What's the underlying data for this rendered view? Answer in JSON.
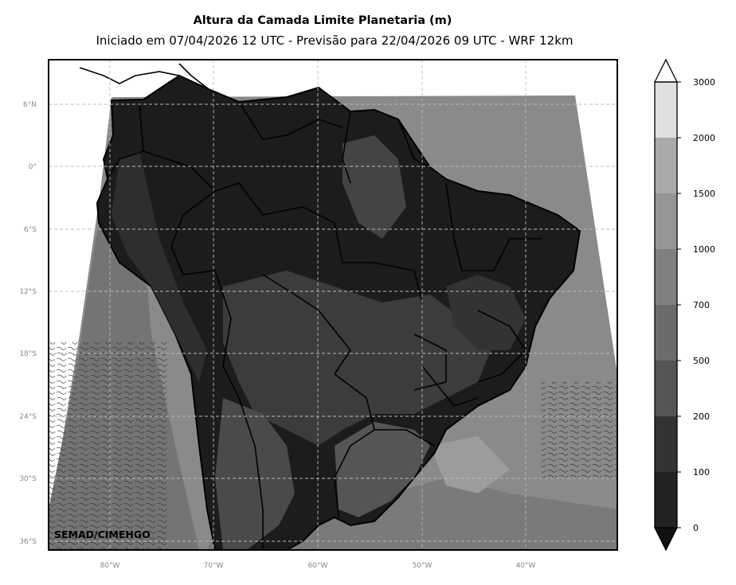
{
  "title": "Altura da Camada Limite Planetaria (m)",
  "subtitle": "Iniciado em 07/04/2026 12 UTC - Previsão para 22/04/2026 09 UTC - WRF 12km",
  "credit": "SEMAD/CIMEHGO",
  "lat_ticks": [
    "6°N",
    "0°",
    "6°S",
    "12°S",
    "18°S",
    "24°S",
    "30°S",
    "36°S"
  ],
  "lon_ticks": [
    "80°W",
    "70°W",
    "60°W",
    "50°W",
    "40°W"
  ],
  "colorbar": {
    "levels": [
      "0",
      "100",
      "200",
      "500",
      "700",
      "1000",
      "1500",
      "2000",
      "3000"
    ],
    "colors": [
      "#111111",
      "#222222",
      "#333333",
      "#555555",
      "#6b6b6b",
      "#808080",
      "#959595",
      "#aaaaaa",
      "#e0e0e0"
    ]
  }
}
